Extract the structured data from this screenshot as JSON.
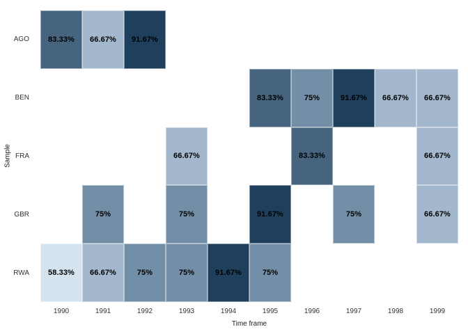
{
  "chart_data": {
    "type": "heatmap",
    "title": "",
    "xlabel": "Time frame",
    "ylabel": "Sample",
    "x_categories": [
      "1990",
      "1991",
      "1992",
      "1993",
      "1994",
      "1995",
      "1996",
      "1997",
      "1998",
      "1999"
    ],
    "y_categories": [
      "AGO",
      "BEN",
      "FRA",
      "GBR",
      "RWA"
    ],
    "legend_position": "none",
    "grid": "off",
    "background_color": "#ffffff",
    "value_colors": {
      "58.33": "#d5e3ee",
      "66.67": "#a3b8cc",
      "75": "#738fa7",
      "83.33": "#46647e",
      "91.67": "#1f405c"
    },
    "cells": [
      {
        "y": "AGO",
        "x": "1990",
        "value": 83.33,
        "label": "83.33%"
      },
      {
        "y": "AGO",
        "x": "1991",
        "value": 66.67,
        "label": "66.67%"
      },
      {
        "y": "AGO",
        "x": "1992",
        "value": 91.67,
        "label": "91.67%"
      },
      {
        "y": "BEN",
        "x": "1995",
        "value": 83.33,
        "label": "83.33%"
      },
      {
        "y": "BEN",
        "x": "1996",
        "value": 75,
        "label": "75%"
      },
      {
        "y": "BEN",
        "x": "1997",
        "value": 91.67,
        "label": "91.67%"
      },
      {
        "y": "BEN",
        "x": "1998",
        "value": 66.67,
        "label": "66.67%"
      },
      {
        "y": "BEN",
        "x": "1999",
        "value": 66.67,
        "label": "66.67%"
      },
      {
        "y": "FRA",
        "x": "1993",
        "value": 66.67,
        "label": "66.67%"
      },
      {
        "y": "FRA",
        "x": "1996",
        "value": 83.33,
        "label": "83.33%"
      },
      {
        "y": "FRA",
        "x": "1999",
        "value": 66.67,
        "label": "66.67%"
      },
      {
        "y": "GBR",
        "x": "1991",
        "value": 75,
        "label": "75%"
      },
      {
        "y": "GBR",
        "x": "1993",
        "value": 75,
        "label": "75%"
      },
      {
        "y": "GBR",
        "x": "1995",
        "value": 91.67,
        "label": "91.67%"
      },
      {
        "y": "GBR",
        "x": "1997",
        "value": 75,
        "label": "75%"
      },
      {
        "y": "GBR",
        "x": "1999",
        "value": 66.67,
        "label": "66.67%"
      },
      {
        "y": "RWA",
        "x": "1990",
        "value": 58.33,
        "label": "58.33%"
      },
      {
        "y": "RWA",
        "x": "1991",
        "value": 66.67,
        "label": "66.67%"
      },
      {
        "y": "RWA",
        "x": "1992",
        "value": 75,
        "label": "75%"
      },
      {
        "y": "RWA",
        "x": "1993",
        "value": 75,
        "label": "75%"
      },
      {
        "y": "RWA",
        "x": "1994",
        "value": 91.67,
        "label": "91.67%"
      },
      {
        "y": "RWA",
        "x": "1995",
        "value": 75,
        "label": "75%"
      }
    ]
  }
}
